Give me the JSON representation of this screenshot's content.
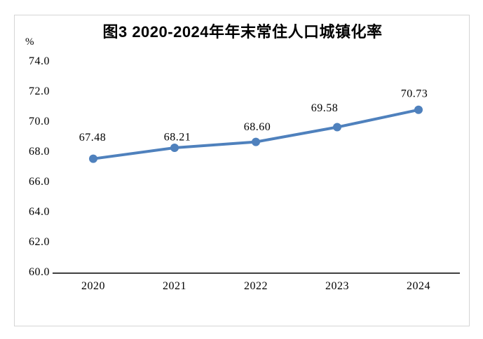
{
  "figure": {
    "title": "图3 2020-2024年年末常住人口城镇化率",
    "y_unit_label": "%"
  },
  "colors": {
    "line": "#4F81BD",
    "axis": "#000000",
    "text": "#000000",
    "frame_border": "#D5D5D5",
    "background": "#FFFFFF"
  },
  "chart_data": {
    "type": "line",
    "title": "图3 2020-2024年年末常住人口城镇化率",
    "xlabel": "",
    "ylabel": "%",
    "categories": [
      "2020",
      "2021",
      "2022",
      "2023",
      "2024"
    ],
    "values": [
      67.48,
      68.21,
      68.6,
      69.58,
      70.73
    ],
    "data_labels": [
      "67.48",
      "68.21",
      "68.60",
      "69.58",
      "70.73"
    ],
    "ylim": [
      60.0,
      74.0
    ],
    "ytick_step": 2.0,
    "yticks": [
      "74.0",
      "72.0",
      "70.0",
      "68.0",
      "66.0",
      "64.0",
      "62.0",
      "60.0"
    ],
    "grid": false,
    "legend_position": "none",
    "line_color": "#4F81BD",
    "marker": "circle"
  }
}
